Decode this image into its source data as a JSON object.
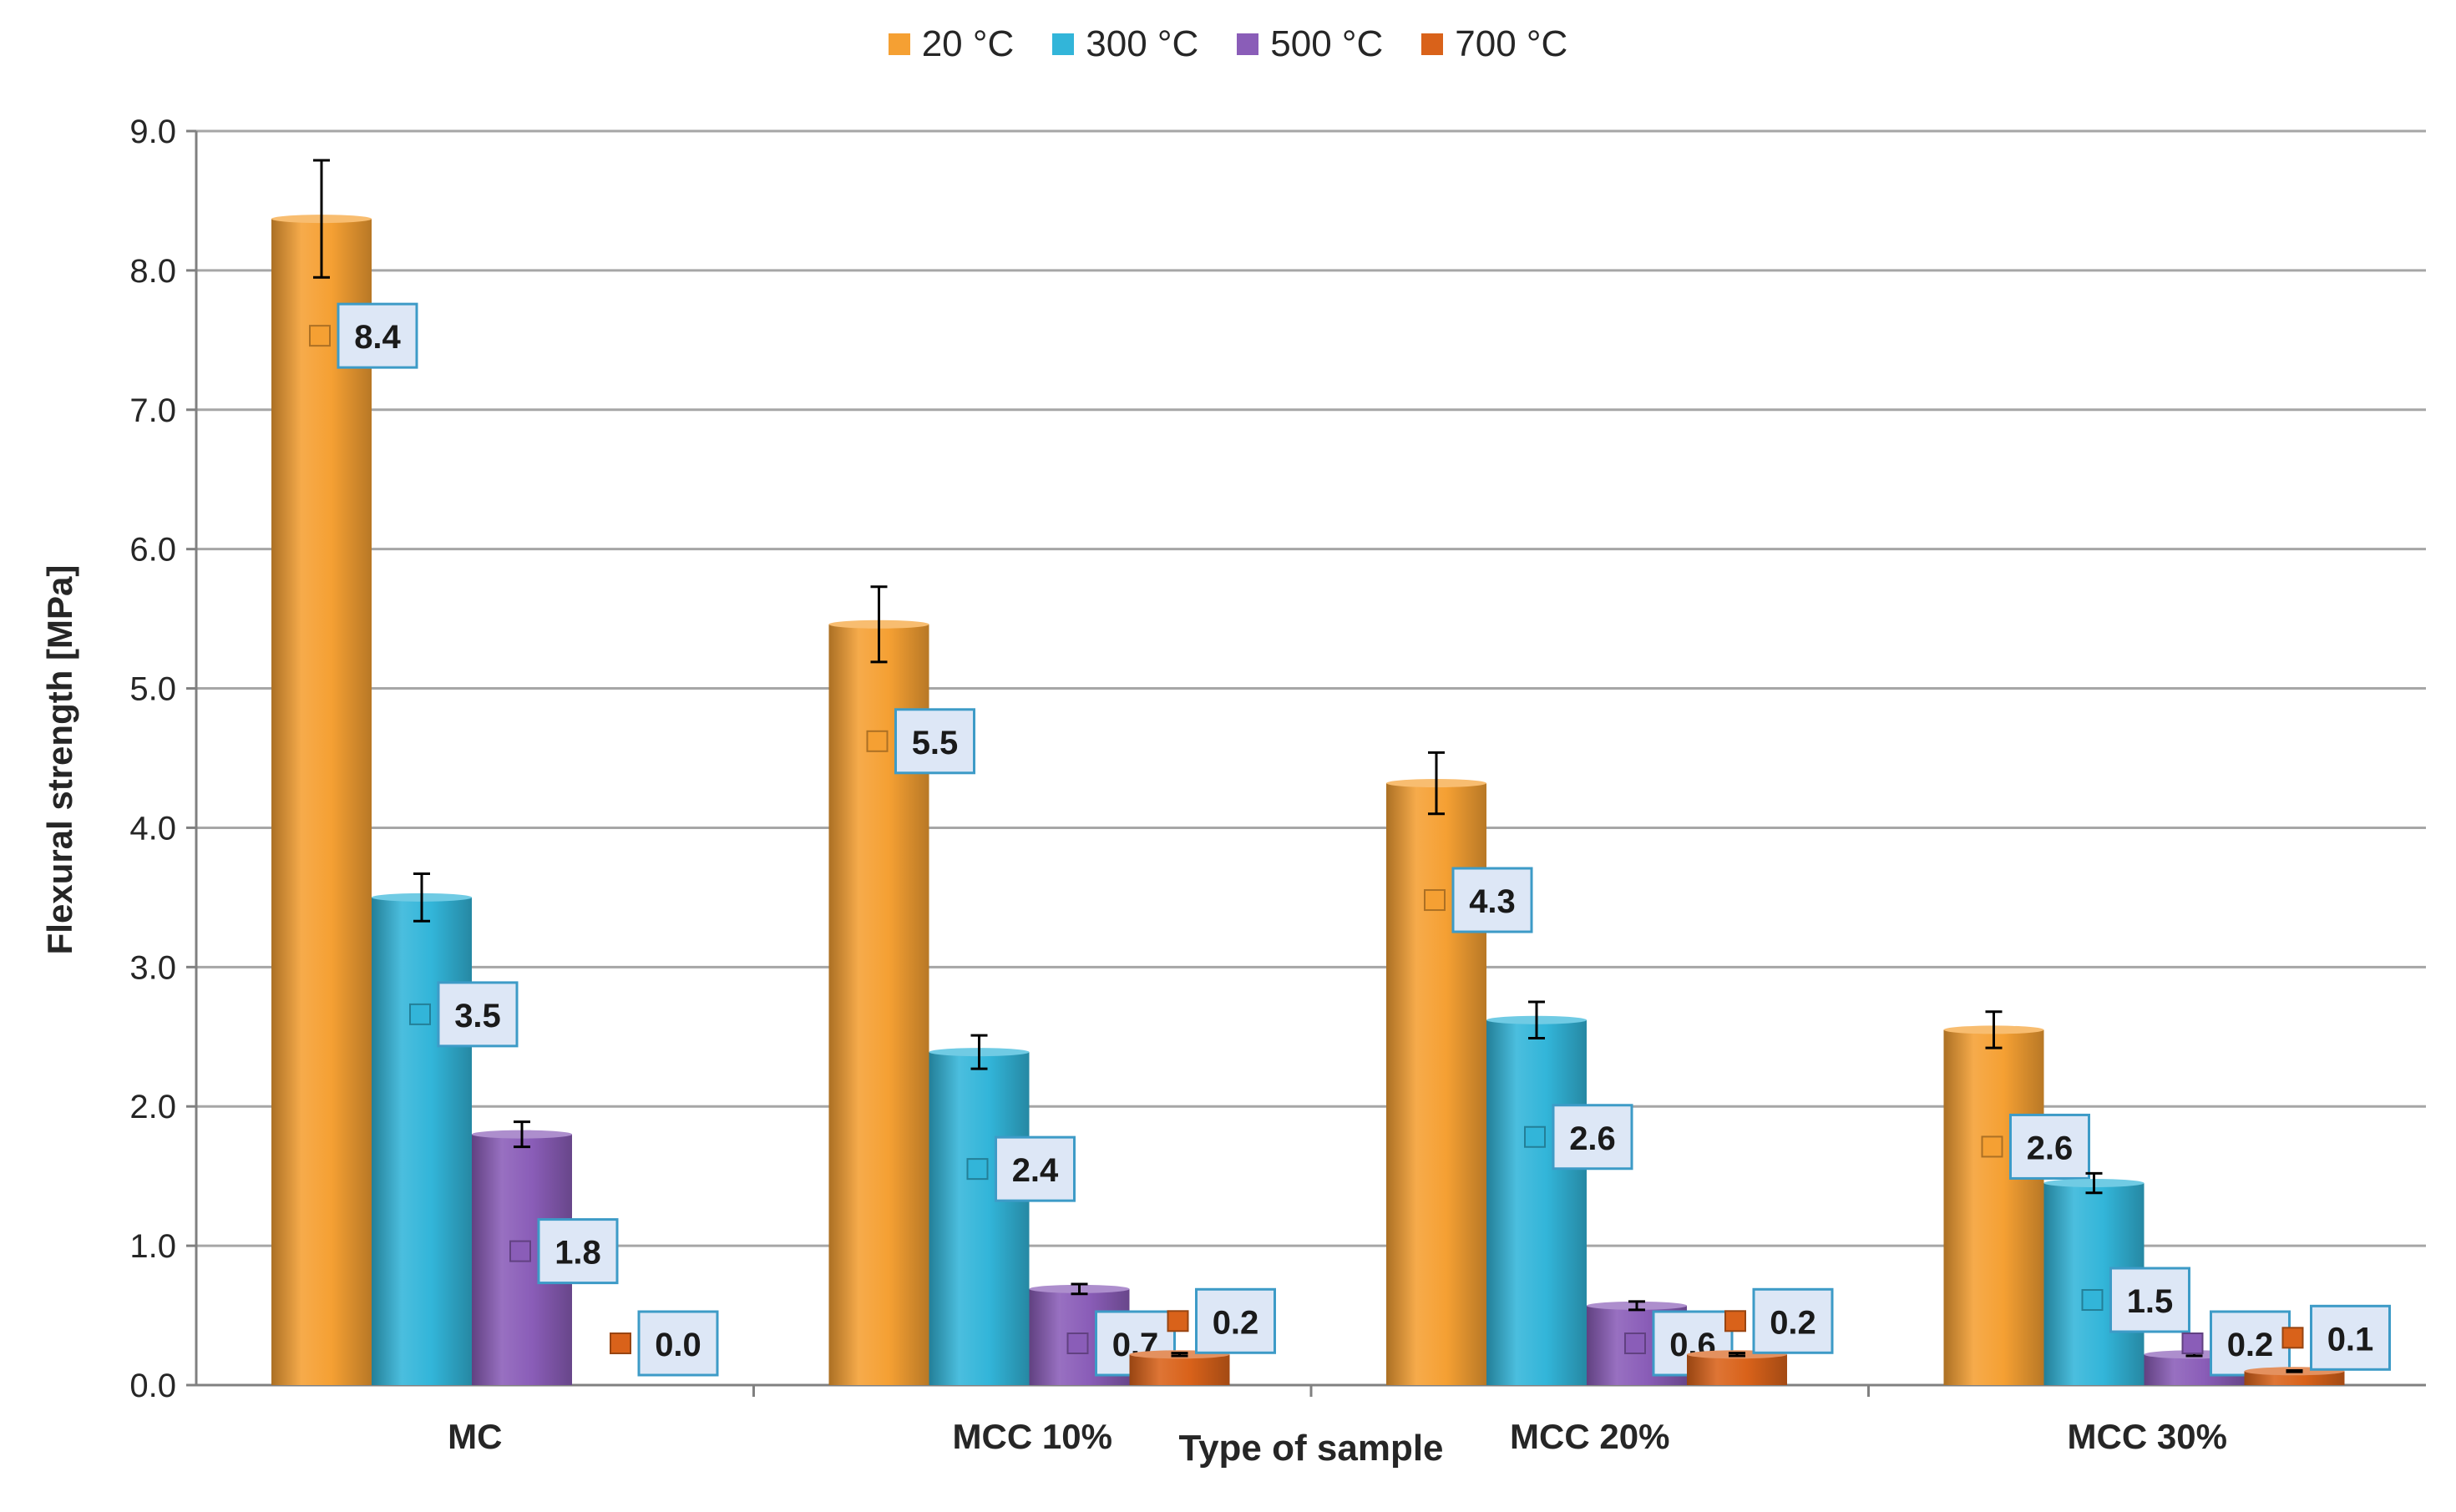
{
  "chart_data": {
    "type": "bar",
    "title": "",
    "xlabel": "Type of sample",
    "ylabel": "Flexural strength [MPa]",
    "ylim": [
      0,
      9
    ],
    "yticks": [
      "0.0",
      "1.0",
      "2.0",
      "3.0",
      "4.0",
      "5.0",
      "6.0",
      "7.0",
      "8.0",
      "9.0"
    ],
    "grid": true,
    "legend_position": "top-center",
    "categories": [
      "MC",
      "MCC 10%",
      "MCC 20%",
      "MCC 30%"
    ],
    "series": [
      {
        "name": "20 °C",
        "color": "#F5A033",
        "values": [
          8.37,
          5.46,
          4.32,
          2.55
        ],
        "errors": [
          0.42,
          0.27,
          0.22,
          0.13
        ],
        "labels": [
          "8.4",
          "5.5",
          "4.3",
          "2.6"
        ]
      },
      {
        "name": "300 °C",
        "color": "#32B5D9",
        "values": [
          3.5,
          2.39,
          2.62,
          1.45
        ],
        "errors": [
          0.17,
          0.12,
          0.13,
          0.07
        ],
        "labels": [
          "3.5",
          "2.4",
          "2.6",
          "1.5"
        ]
      },
      {
        "name": "500 °C",
        "color": "#8A5DB8",
        "values": [
          1.8,
          0.69,
          0.57,
          0.22
        ],
        "errors": [
          0.09,
          0.035,
          0.03,
          0.01
        ],
        "labels": [
          "1.8",
          "0.7",
          "0.6",
          "0.2"
        ]
      },
      {
        "name": "700 °C",
        "color": "#D9621A",
        "values": [
          0.0,
          0.22,
          0.22,
          0.1
        ],
        "errors": [
          0.0,
          0.01,
          0.01,
          0.005
        ],
        "labels": [
          "0.0",
          "0.2",
          "0.2",
          "0.1"
        ]
      }
    ]
  }
}
